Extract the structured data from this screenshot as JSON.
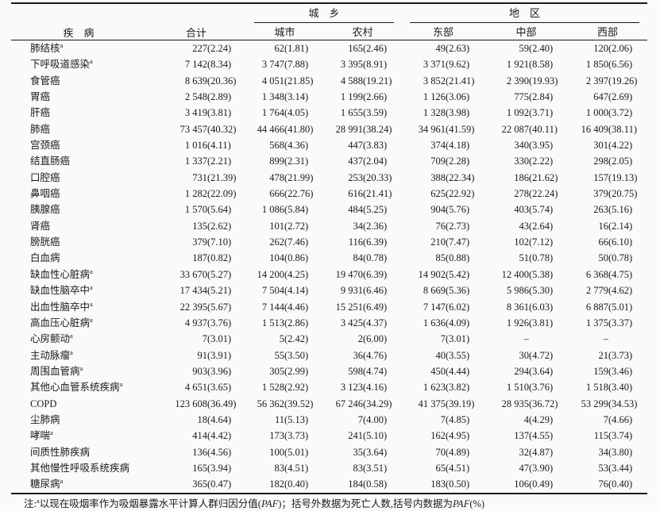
{
  "table": {
    "header": {
      "disease": "疾　病",
      "total": "合计",
      "urban_rural_group": "城　乡",
      "region_group": "地　区",
      "urban": "城市",
      "rural": "农村",
      "east": "东部",
      "central": "中部",
      "west": "西部"
    },
    "value_format": "死亡人数(PAF%)",
    "rows": [
      {
        "name": "肺结核",
        "sup": "a",
        "values": [
          "227(2.24)",
          "62(1.81)",
          "165(2.46)",
          "49(2.63)",
          "59(2.40)",
          "120(2.06)"
        ]
      },
      {
        "name": "下呼吸道感染",
        "sup": "a",
        "values": [
          "7 142(8.34)",
          "3 747(7.88)",
          "3 395(8.91)",
          "3 371(9.62)",
          "1 921(8.58)",
          "1 850(6.56)"
        ]
      },
      {
        "name": "食管癌",
        "sup": "",
        "values": [
          "8 639(20.36)",
          "4 051(21.85)",
          "4 588(19.21)",
          "3 852(21.41)",
          "2 390(19.93)",
          "2 397(19.26)"
        ]
      },
      {
        "name": "胃癌",
        "sup": "",
        "values": [
          "2 548(2.89)",
          "1 348(3.14)",
          "1 199(2.66)",
          "1 126(3.06)",
          "775(2.84)",
          "647(2.69)"
        ]
      },
      {
        "name": "肝癌",
        "sup": "",
        "values": [
          "3 419(3.81)",
          "1 764(4.05)",
          "1 655(3.59)",
          "1 328(3.98)",
          "1 092(3.71)",
          "1 000(3.72)"
        ]
      },
      {
        "name": "肺癌",
        "sup": "",
        "values": [
          "73 457(40.32)",
          "44 466(41.80)",
          "28 991(38.24)",
          "34 961(41.59)",
          "22 087(40.11)",
          "16 409(38.11)"
        ]
      },
      {
        "name": "宫颈癌",
        "sup": "",
        "values": [
          "1 016(4.11)",
          "568(4.36)",
          "447(3.83)",
          "374(4.18)",
          "340(3.95)",
          "301(4.22)"
        ]
      },
      {
        "name": "结直肠癌",
        "sup": "",
        "values": [
          "1 337(2.21)",
          "899(2.31)",
          "437(2.04)",
          "709(2.28)",
          "330(2.22)",
          "298(2.05)"
        ]
      },
      {
        "name": "口腔癌",
        "sup": "",
        "values": [
          "731(21.39)",
          "478(21.99)",
          "253(20.33)",
          "388(22.34)",
          "186(21.62)",
          "157(19.13)"
        ]
      },
      {
        "name": "鼻咽癌",
        "sup": "",
        "values": [
          "1 282(22.09)",
          "666(22.76)",
          "616(21.41)",
          "625(22.92)",
          "278(22.24)",
          "379(20.75)"
        ]
      },
      {
        "name": "胰腺癌",
        "sup": "",
        "values": [
          "1 570(5.64)",
          "1 086(5.84)",
          "484(5.25)",
          "904(5.76)",
          "403(5.74)",
          "263(5.16)"
        ]
      },
      {
        "name": "肾癌",
        "sup": "",
        "values": [
          "135(2.62)",
          "101(2.72)",
          "34(2.36)",
          "76(2.73)",
          "43(2.64)",
          "16(2.14)"
        ]
      },
      {
        "name": "膀胱癌",
        "sup": "",
        "values": [
          "379(7.10)",
          "262(7.46)",
          "116(6.39)",
          "210(7.47)",
          "102(7.12)",
          "66(6.10)"
        ]
      },
      {
        "name": "白血病",
        "sup": "",
        "values": [
          "187(0.82)",
          "104(0.86)",
          "84(0.78)",
          "85(0.88)",
          "51(0.78)",
          "50(0.78)"
        ]
      },
      {
        "name": "缺血性心脏病",
        "sup": "a",
        "values": [
          "33 670(5.27)",
          "14 200(4.25)",
          "19 470(6.39)",
          "14 902(5.42)",
          "12 400(5.38)",
          "6 368(4.75)"
        ]
      },
      {
        "name": "缺血性脑卒中",
        "sup": "a",
        "values": [
          "17 434(5.21)",
          "7 504(4.14)",
          "9 931(6.46)",
          "8 669(5.36)",
          "5 986(5.30)",
          "2 779(4.62)"
        ]
      },
      {
        "name": "出血性脑卒中",
        "sup": "a",
        "values": [
          "22 395(5.67)",
          "7 144(4.46)",
          "15 251(6.49)",
          "7 147(6.02)",
          "8 361(6.03)",
          "6 887(5.01)"
        ]
      },
      {
        "name": "高血压心脏病",
        "sup": "a",
        "values": [
          "4 937(3.76)",
          "1 513(2.86)",
          "3 425(4.37)",
          "1 636(4.09)",
          "1 926(3.81)",
          "1 375(3.37)"
        ]
      },
      {
        "name": "心房颤动",
        "sup": "a",
        "values": [
          "7(3.01)",
          "5(2.42)",
          "2(6.00)",
          "7(3.01)",
          "–",
          "–"
        ]
      },
      {
        "name": "主动脉瘤",
        "sup": "a",
        "values": [
          "91(3.91)",
          "55(3.50)",
          "36(4.76)",
          "40(3.55)",
          "30(4.72)",
          "21(3.73)"
        ]
      },
      {
        "name": "周围血管病",
        "sup": "a",
        "values": [
          "903(3.96)",
          "305(2.99)",
          "598(4.74)",
          "450(4.44)",
          "294(3.64)",
          "159(3.46)"
        ]
      },
      {
        "name": "其他心血管系统疾病",
        "sup": "a",
        "values": [
          "4 651(3.65)",
          "1 528(2.92)",
          "3 123(4.16)",
          "1 623(3.82)",
          "1 510(3.76)",
          "1 518(3.40)"
        ]
      },
      {
        "name": "COPD",
        "sup": "",
        "values": [
          "123 608(36.49)",
          "56 362(39.52)",
          "67 246(34.29)",
          "41 375(39.19)",
          "28 935(36.72)",
          "53 299(34.53)"
        ]
      },
      {
        "name": "尘肺病",
        "sup": "",
        "values": [
          "18(4.64)",
          "11(5.13)",
          "7(4.00)",
          "7(4.85)",
          "4(4.29)",
          "7(4.66)"
        ]
      },
      {
        "name": "哮喘",
        "sup": "a",
        "values": [
          "414(4.42)",
          "173(3.73)",
          "241(5.10)",
          "162(4.95)",
          "137(4.55)",
          "115(3.74)"
        ]
      },
      {
        "name": "间质性肺疾病",
        "sup": "",
        "values": [
          "136(4.56)",
          "100(5.01)",
          "35(3.64)",
          "70(4.89)",
          "32(4.87)",
          "34(3.80)"
        ]
      },
      {
        "name": "其他慢性呼吸系统疾病",
        "sup": "",
        "values": [
          "165(3.94)",
          "83(4.51)",
          "83(3.51)",
          "65(4.51)",
          "47(3.90)",
          "53(3.44)"
        ]
      },
      {
        "name": "糖尿病",
        "sup": "a",
        "values": [
          "365(0.47)",
          "182(0.40)",
          "184(0.58)",
          "183(0.50)",
          "106(0.49)",
          "76(0.40)"
        ]
      }
    ]
  },
  "footnote": {
    "prefix": "注:",
    "marker": "a",
    "text1": "以现在吸烟率作为吸烟暴露水平计算人群归因分值(",
    "paf1": "PAF",
    "text2": ")；括号外数据为死亡人数,括号内数据为",
    "paf2": "PAF",
    "text3": "(%)"
  },
  "colors": {
    "paper": "#fafaf8",
    "line": "#1a1a1a",
    "text": "#1a1a1a"
  }
}
